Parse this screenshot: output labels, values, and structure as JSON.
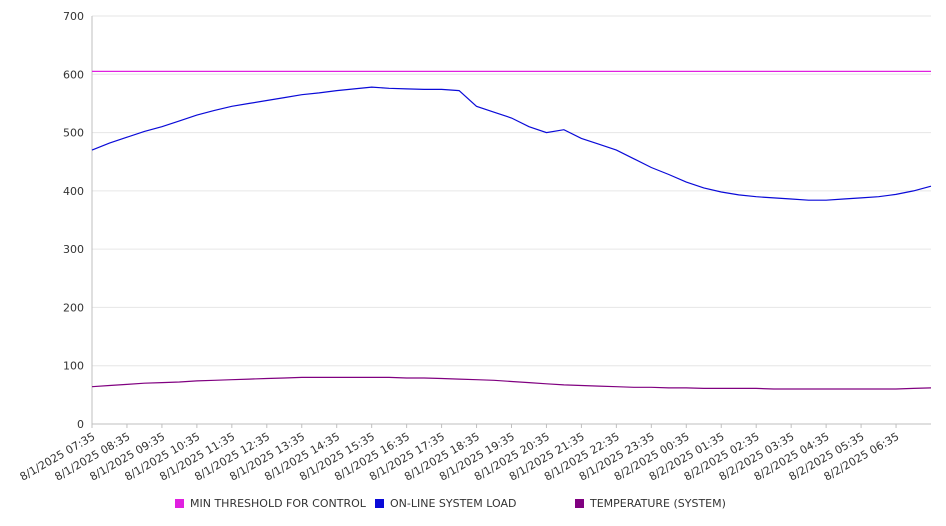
{
  "chart_data": {
    "type": "line",
    "title": "",
    "xlabel": "",
    "ylabel": "",
    "ylim": [
      0,
      700
    ],
    "yticks": [
      0,
      100,
      200,
      300,
      400,
      500,
      600,
      700
    ],
    "grid": true,
    "legend_position": "bottom",
    "x_tick_labels": [
      "8/1/2025 07:35",
      "8/1/2025 08:35",
      "8/1/2025 09:35",
      "8/1/2025 10:35",
      "8/1/2025 11:35",
      "8/1/2025 12:35",
      "8/1/2025 13:35",
      "8/1/2025 14:35",
      "8/1/2025 15:35",
      "8/1/2025 16:35",
      "8/1/2025 17:35",
      "8/1/2025 18:35",
      "8/1/2025 19:35",
      "8/1/2025 20:35",
      "8/1/2025 21:35",
      "8/1/2025 22:35",
      "8/1/2025 23:35",
      "8/2/2025 00:35",
      "8/2/2025 01:35",
      "8/2/2025 02:35",
      "8/2/2025 03:35",
      "8/2/2025 04:35",
      "8/2/2025 05:35",
      "8/2/2025 06:35"
    ],
    "x": [
      "8/1/2025 07:35",
      "8/1/2025 08:05",
      "8/1/2025 08:35",
      "8/1/2025 09:05",
      "8/1/2025 09:35",
      "8/1/2025 10:05",
      "8/1/2025 10:35",
      "8/1/2025 11:05",
      "8/1/2025 11:35",
      "8/1/2025 12:05",
      "8/1/2025 12:35",
      "8/1/2025 13:05",
      "8/1/2025 13:35",
      "8/1/2025 14:05",
      "8/1/2025 14:35",
      "8/1/2025 15:05",
      "8/1/2025 15:35",
      "8/1/2025 16:05",
      "8/1/2025 16:35",
      "8/1/2025 17:05",
      "8/1/2025 17:35",
      "8/1/2025 18:05",
      "8/1/2025 18:35",
      "8/1/2025 19:05",
      "8/1/2025 19:35",
      "8/1/2025 20:05",
      "8/1/2025 20:35",
      "8/1/2025 21:05",
      "8/1/2025 21:35",
      "8/1/2025 22:05",
      "8/1/2025 22:35",
      "8/1/2025 23:05",
      "8/1/2025 23:35",
      "8/2/2025 00:05",
      "8/2/2025 00:35",
      "8/2/2025 01:05",
      "8/2/2025 01:35",
      "8/2/2025 02:05",
      "8/2/2025 02:35",
      "8/2/2025 03:05",
      "8/2/2025 03:35",
      "8/2/2025 04:05",
      "8/2/2025 04:35",
      "8/2/2025 05:05",
      "8/2/2025 05:35",
      "8/2/2025 06:05",
      "8/2/2025 06:35",
      "8/2/2025 07:05",
      "8/2/2025 07:30"
    ],
    "series": [
      {
        "name": "MIN THRESHOLD FOR CONTROL",
        "color": "#e020e0",
        "values": [
          605,
          605,
          605,
          605,
          605,
          605,
          605,
          605,
          605,
          605,
          605,
          605,
          605,
          605,
          605,
          605,
          605,
          605,
          605,
          605,
          605,
          605,
          605,
          605,
          605,
          605,
          605,
          605,
          605,
          605,
          605,
          605,
          605,
          605,
          605,
          605,
          605,
          605,
          605,
          605,
          605,
          605,
          605,
          605,
          605,
          605,
          605,
          605,
          605
        ]
      },
      {
        "name": "ON-LINE SYSTEM LOAD",
        "color": "#0a0ad8",
        "values": [
          470,
          482,
          492,
          502,
          510,
          520,
          530,
          538,
          545,
          550,
          555,
          560,
          565,
          568,
          572,
          575,
          578,
          576,
          575,
          574,
          574,
          572,
          545,
          535,
          525,
          510,
          500,
          505,
          490,
          480,
          470,
          455,
          440,
          428,
          415,
          405,
          398,
          393,
          390,
          388,
          386,
          384,
          384,
          386,
          388,
          390,
          394,
          400,
          408
        ]
      },
      {
        "name": "TEMPERATURE (SYSTEM)",
        "color": "#800080",
        "values": [
          64,
          66,
          68,
          70,
          71,
          72,
          74,
          75,
          76,
          77,
          78,
          79,
          80,
          80,
          80,
          80,
          80,
          80,
          79,
          79,
          78,
          77,
          76,
          75,
          73,
          71,
          69,
          67,
          66,
          65,
          64,
          63,
          63,
          62,
          62,
          61,
          61,
          61,
          61,
          60,
          60,
          60,
          60,
          60,
          60,
          60,
          60,
          61,
          62
        ]
      }
    ]
  }
}
